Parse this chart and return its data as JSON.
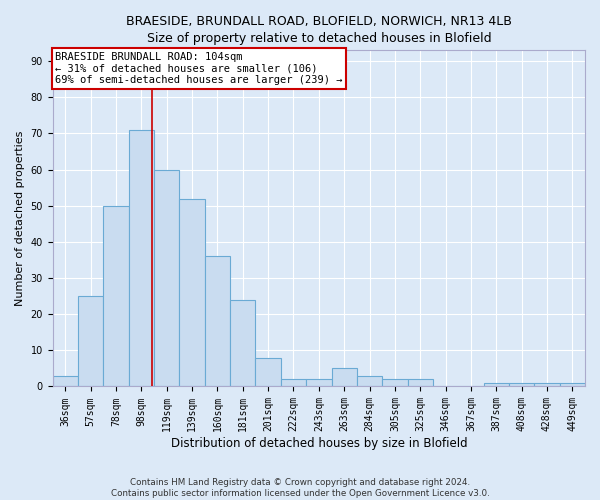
{
  "title_line1": "BRAESIDE, BRUNDALL ROAD, BLOFIELD, NORWICH, NR13 4LB",
  "title_line2": "Size of property relative to detached houses in Blofield",
  "xlabel": "Distribution of detached houses by size in Blofield",
  "ylabel": "Number of detached properties",
  "categories": [
    "36sqm",
    "57sqm",
    "78sqm",
    "98sqm",
    "119sqm",
    "139sqm",
    "160sqm",
    "181sqm",
    "201sqm",
    "222sqm",
    "243sqm",
    "263sqm",
    "284sqm",
    "305sqm",
    "325sqm",
    "346sqm",
    "367sqm",
    "387sqm",
    "408sqm",
    "428sqm",
    "449sqm"
  ],
  "values": [
    3,
    25,
    50,
    71,
    60,
    52,
    36,
    24,
    8,
    2,
    2,
    5,
    3,
    2,
    2,
    0,
    0,
    1,
    1,
    1,
    1
  ],
  "bar_color": "#c9dcf0",
  "bar_edge_color": "#6aaad4",
  "bar_width": 1.0,
  "ylim": [
    0,
    93
  ],
  "yticks": [
    0,
    10,
    20,
    30,
    40,
    50,
    60,
    70,
    80,
    90
  ],
  "red_line_x": 3.43,
  "annotation_text": "BRAESIDE BRUNDALL ROAD: 104sqm\n← 31% of detached houses are smaller (106)\n69% of semi-detached houses are larger (239) →",
  "annotation_box_color": "#ffffff",
  "annotation_box_edge": "#cc0000",
  "background_color": "#dce9f7",
  "grid_color": "#ffffff",
  "footer_text": "Contains HM Land Registry data © Crown copyright and database right 2024.\nContains public sector information licensed under the Open Government Licence v3.0.",
  "title_fontsize": 9,
  "axis_label_fontsize": 8.5,
  "tick_fontsize": 7,
  "annotation_fontsize": 7.5,
  "ylabel_fontsize": 8
}
